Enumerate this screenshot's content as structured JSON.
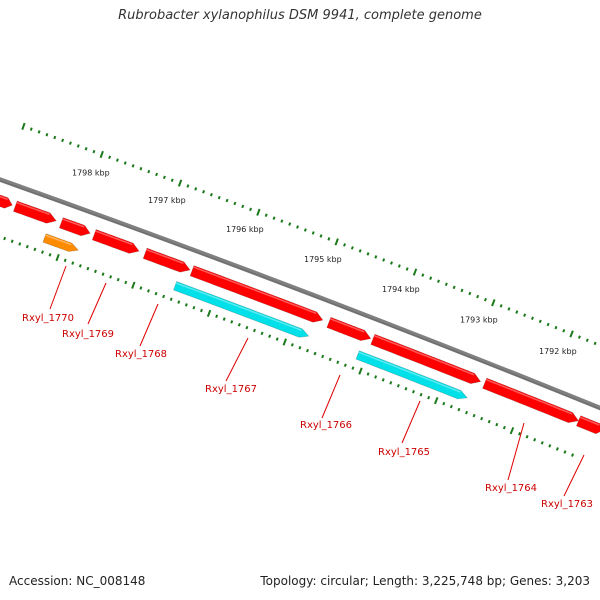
{
  "title": "Rubrobacter xylanophilus DSM 9941, complete genome",
  "footer": {
    "accession": "Accession: NC_008148",
    "summary": "Topology: circular; Length: 3,225,748 bp; Genes: 3,203"
  },
  "colors": {
    "backbone": "#808080",
    "cds_forward": "#ff0000",
    "cds_reverse": "#00e0e8",
    "other_feature": "#ff8c00",
    "ticks": "#1a7a1a",
    "gene_label": "#cc0000",
    "leader_line": "#e00000"
  },
  "scale_labels": [
    "1798 kbp",
    "1797 kbp",
    "1796 kbp",
    "1795 kbp",
    "1794 kbp",
    "1793 kbp",
    "1792 kbp"
  ],
  "gene_labels": [
    "Rxyl_1770",
    "Rxyl_1769",
    "Rxyl_1768",
    "Rxyl_1767",
    "Rxyl_1766",
    "Rxyl_1765",
    "Rxyl_1764",
    "Rxyl_1763"
  ],
  "features": [
    {
      "type": "cds_forward"
    },
    {
      "type": "cds_forward"
    },
    {
      "type": "cds_forward"
    },
    {
      "type": "cds_forward"
    },
    {
      "type": "cds_forward"
    },
    {
      "type": "cds_forward"
    },
    {
      "type": "cds_forward"
    },
    {
      "type": "cds_forward"
    },
    {
      "type": "cds_forward"
    },
    {
      "type": "other_feature"
    },
    {
      "type": "cds_reverse"
    },
    {
      "type": "cds_reverse"
    }
  ]
}
